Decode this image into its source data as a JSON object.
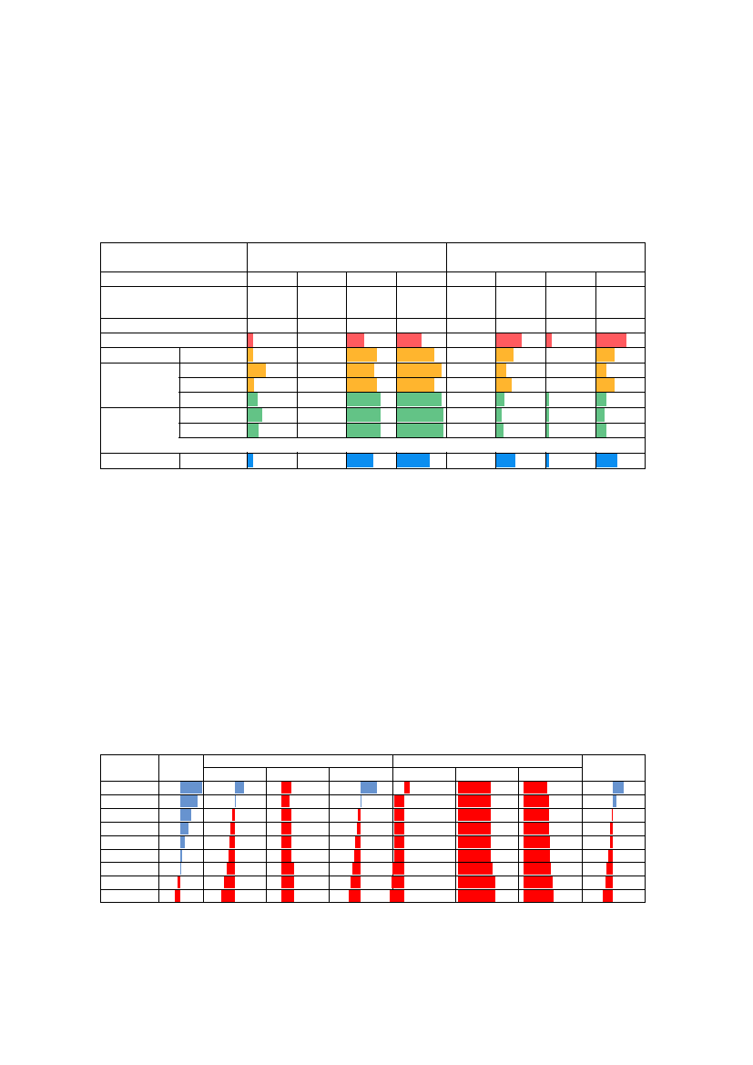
{
  "colors": {
    "red": "#ff5a5f",
    "orange": "#ffb52e",
    "green": "#63c386",
    "blue": "#0b8ef0",
    "steel_blue": "#6793cf",
    "pure_red": "#ff0000",
    "border": "#000000"
  },
  "table1": {
    "text_visible": false,
    "groups": [
      "orange",
      "green",
      "blue"
    ],
    "bar_fractions": {
      "red_row": [
        0.12,
        0.0,
        0.35,
        0.5,
        0.0,
        0.52,
        0.12,
        0.62
      ],
      "orange_1": [
        0.12,
        0.0,
        0.62,
        0.78,
        0.0,
        0.35,
        0.0,
        0.37
      ],
      "orange_2": [
        0.37,
        0.0,
        0.57,
        0.92,
        0.0,
        0.2,
        0.0,
        0.2
      ],
      "orange_3": [
        0.13,
        0.0,
        0.62,
        0.78,
        0.0,
        0.33,
        0.0,
        0.37
      ],
      "green_1": [
        0.2,
        0.0,
        0.7,
        0.92,
        0.0,
        0.17,
        0.05,
        0.2
      ],
      "green_2": [
        0.3,
        0.0,
        0.7,
        0.96,
        0.0,
        0.12,
        0.05,
        0.17
      ],
      "green_3": [
        0.23,
        0.0,
        0.7,
        0.96,
        0.0,
        0.15,
        0.05,
        0.2
      ],
      "blue_row": [
        0.12,
        0.0,
        0.55,
        0.67,
        0.0,
        0.4,
        0.05,
        0.44
      ]
    }
  },
  "table2": {
    "text_visible": false,
    "bars": [
      [
        0.48,
        0.15,
        0.17,
        0.27,
        0.09,
        0.55,
        0.4,
        0.18
      ],
      [
        0.38,
        0.0,
        0.13,
        0.0,
        -0.16,
        0.55,
        0.42,
        0.06
      ],
      [
        0.24,
        -0.05,
        0.17,
        -0.04,
        -0.16,
        0.55,
        0.42,
        -0.02
      ],
      [
        0.17,
        -0.07,
        0.17,
        -0.06,
        -0.16,
        0.55,
        0.42,
        -0.04
      ],
      [
        0.1,
        -0.09,
        0.17,
        -0.09,
        -0.16,
        0.55,
        0.44,
        -0.05
      ],
      [
        0.03,
        -0.11,
        0.17,
        -0.11,
        -0.17,
        0.55,
        0.44,
        -0.07
      ],
      [
        0.0,
        -0.14,
        0.21,
        -0.14,
        -0.19,
        0.58,
        0.46,
        -0.1
      ],
      [
        -0.05,
        -0.18,
        0.21,
        -0.16,
        -0.21,
        0.62,
        0.48,
        -0.12
      ],
      [
        -0.11,
        -0.22,
        0.21,
        -0.19,
        -0.24,
        0.62,
        0.5,
        -0.16
      ]
    ]
  }
}
